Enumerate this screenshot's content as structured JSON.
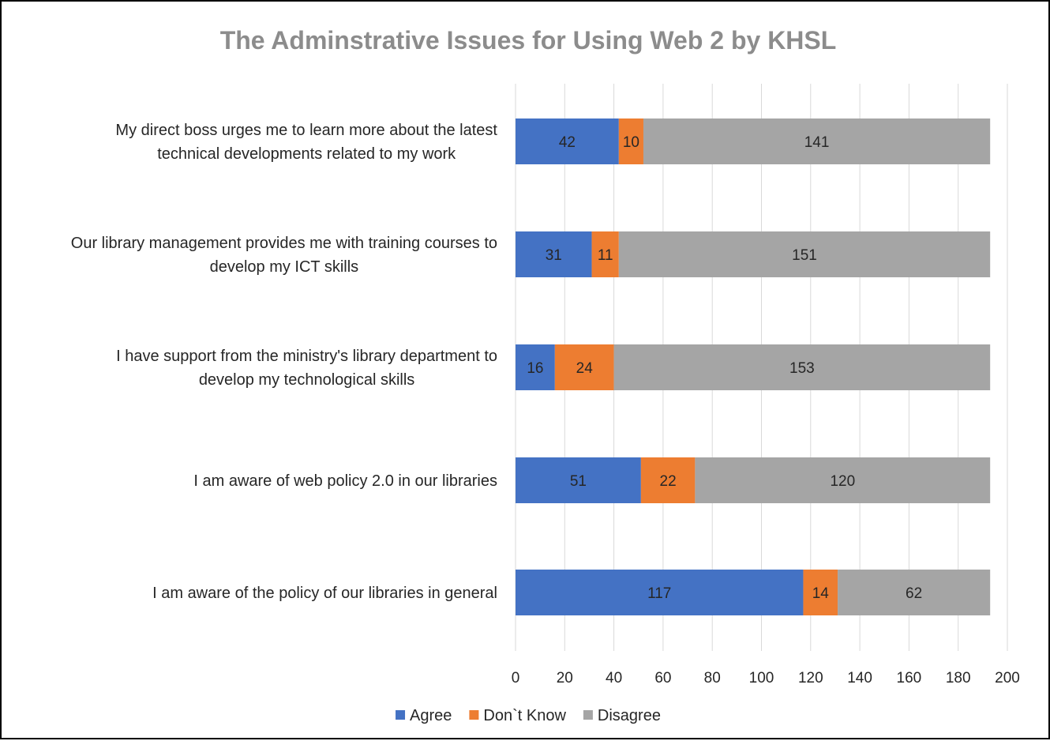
{
  "chart_data": {
    "type": "bar",
    "orientation": "horizontal",
    "stacked": true,
    "title": "The Adminstrative Issues for Using Web 2 by KHSL",
    "categories": [
      [
        "My direct boss urges me to learn more about the latest",
        "technical developments related to my work"
      ],
      [
        "Our library management provides me with training courses to",
        "develop my ICT skills"
      ],
      [
        "I have support from the ministry's library department to",
        "develop my technological skills"
      ],
      [
        "I am aware of web policy 2.0 in our libraries"
      ],
      [
        "I am aware of the policy of our libraries in general"
      ]
    ],
    "series": [
      {
        "name": "Agree",
        "color": "#4472c4",
        "values": [
          42,
          31,
          16,
          51,
          117
        ]
      },
      {
        "name": "Don`t Know",
        "color": "#ed7d31",
        "values": [
          10,
          11,
          24,
          22,
          14
        ]
      },
      {
        "name": "Disagree",
        "color": "#a5a5a5",
        "values": [
          141,
          151,
          153,
          120,
          62
        ]
      }
    ],
    "xlim": [
      0,
      200
    ],
    "xticks": [
      0,
      20,
      40,
      60,
      80,
      100,
      120,
      140,
      160,
      180,
      200
    ],
    "grid": true,
    "legend_position": "bottom"
  }
}
